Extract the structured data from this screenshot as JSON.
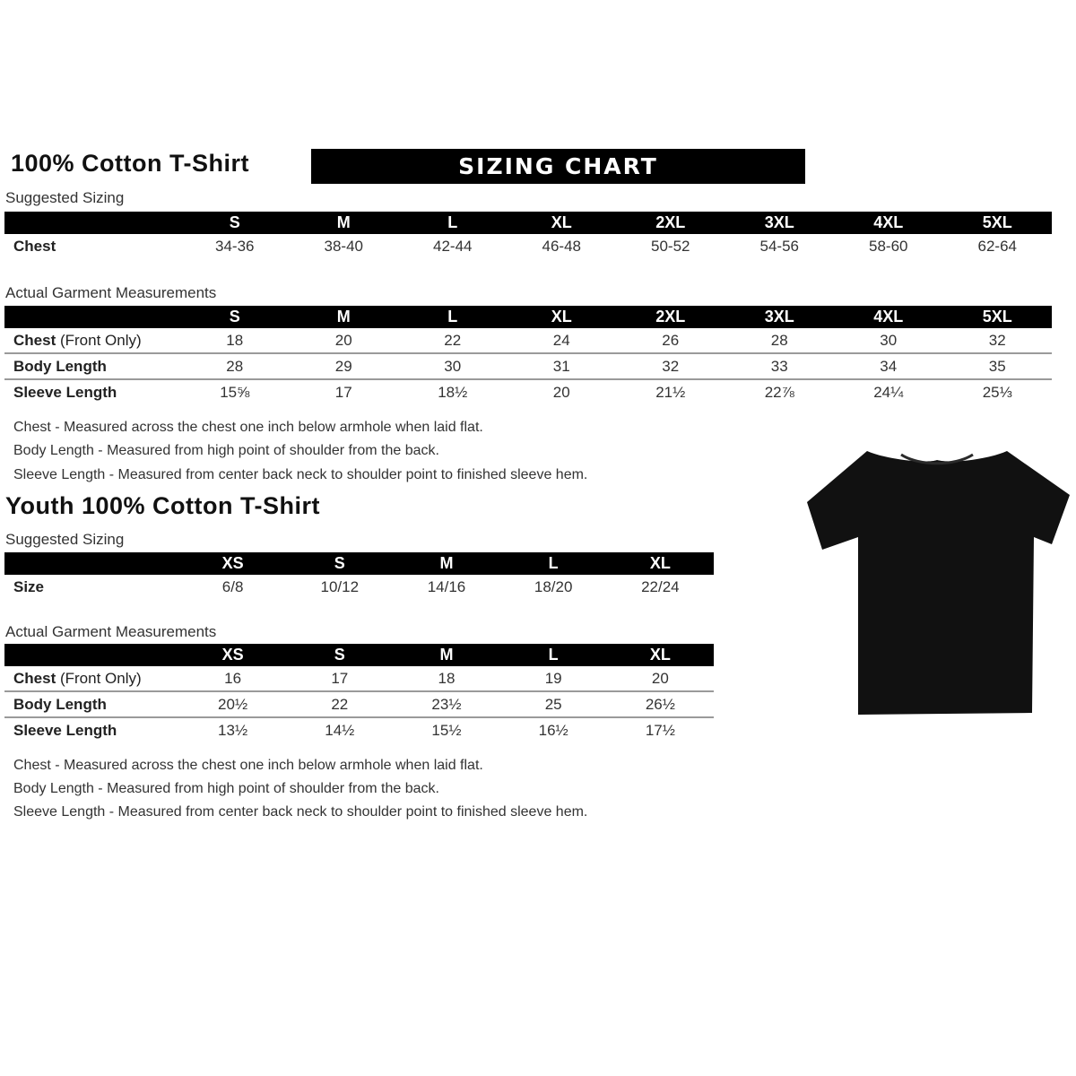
{
  "adult": {
    "title": "100% Cotton T-Shirt",
    "banner": "SIZING CHART",
    "suggested": {
      "label": "Suggested Sizing",
      "sizes": [
        "S",
        "M",
        "L",
        "XL",
        "2XL",
        "3XL",
        "4XL",
        "5XL"
      ],
      "rows": [
        {
          "label": "Chest",
          "values": [
            "34-36",
            "38-40",
            "42-44",
            "46-48",
            "50-52",
            "54-56",
            "58-60",
            "62-64"
          ]
        }
      ]
    },
    "actual": {
      "label": "Actual Garment Measurements",
      "sizes": [
        "S",
        "M",
        "L",
        "XL",
        "2XL",
        "3XL",
        "4XL",
        "5XL"
      ],
      "rows": [
        {
          "label": "Chest",
          "note": "(Front Only)",
          "values": [
            "18",
            "20",
            "22",
            "24",
            "26",
            "28",
            "30",
            "32"
          ]
        },
        {
          "label": "Body Length",
          "values": [
            "28",
            "29",
            "30",
            "31",
            "32",
            "33",
            "34",
            "35"
          ]
        },
        {
          "label": "Sleeve Length",
          "values": [
            "15⅝",
            "17",
            "18½",
            "20",
            "21½",
            "22⅞",
            "24¼",
            "25⅓"
          ]
        }
      ]
    },
    "notes": [
      "Chest - Measured across the chest one inch below armhole when laid flat.",
      "Body Length - Measured from high point of shoulder from the back.",
      "Sleeve Length - Measured from center back neck to shoulder point to finished sleeve hem."
    ]
  },
  "youth": {
    "title": "Youth 100% Cotton T-Shirt",
    "suggested": {
      "label": "Suggested Sizing",
      "sizes": [
        "XS",
        "S",
        "M",
        "L",
        "XL"
      ],
      "rows": [
        {
          "label": "Size",
          "values": [
            "6/8",
            "10/12",
            "14/16",
            "18/20",
            "22/24"
          ]
        }
      ]
    },
    "actual": {
      "label": "Actual Garment Measurements",
      "sizes": [
        "XS",
        "S",
        "M",
        "L",
        "XL"
      ],
      "rows": [
        {
          "label": "Chest",
          "note": "(Front Only)",
          "values": [
            "16",
            "17",
            "18",
            "19",
            "20"
          ]
        },
        {
          "label": "Body Length",
          "values": [
            "20½",
            "22",
            "23½",
            "25",
            "26½"
          ]
        },
        {
          "label": "Sleeve Length",
          "values": [
            "13½",
            "14½",
            "15½",
            "16½",
            "17½"
          ]
        }
      ]
    },
    "notes": [
      "Chest - Measured across the chest one inch below armhole when laid flat.",
      "Body Length - Measured from high point of shoulder from the back.",
      "Sleeve Length - Measured from center back neck to shoulder point to finished sleeve hem."
    ]
  },
  "tshirt_color": "#111111"
}
